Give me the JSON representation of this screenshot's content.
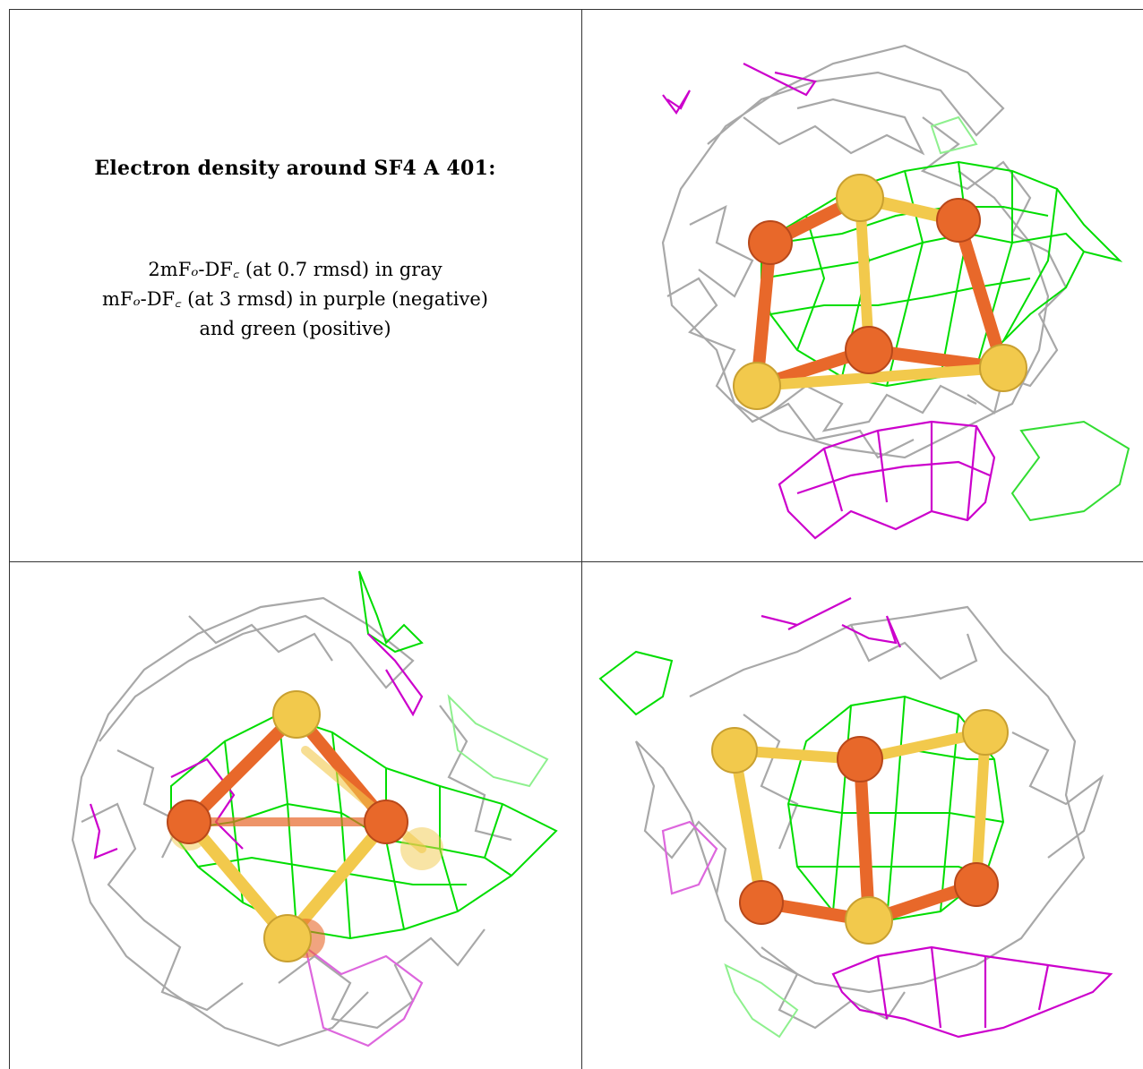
{
  "caption": {
    "title": "Electron density around SF4 A 401:",
    "line1": "2mFo-DFc (at 0.7 rmsd) in gray",
    "line2": "mFo-DFc (at 3 rmsd) in purple (negative)",
    "line3": "and green (positive)"
  },
  "colors": {
    "map_2fofc": "#a8a8a8",
    "map_fofc_negative": "#cc00cc",
    "map_fofc_positive": "#00dd00",
    "sulfur": "#f2c94c",
    "iron": "#e8682a"
  },
  "panels": [
    {
      "view": "top-right",
      "content": "SF4 cluster density view 1"
    },
    {
      "view": "bottom-left",
      "content": "SF4 cluster density view 2"
    },
    {
      "view": "bottom-right",
      "content": "SF4 cluster density view 3"
    }
  ]
}
